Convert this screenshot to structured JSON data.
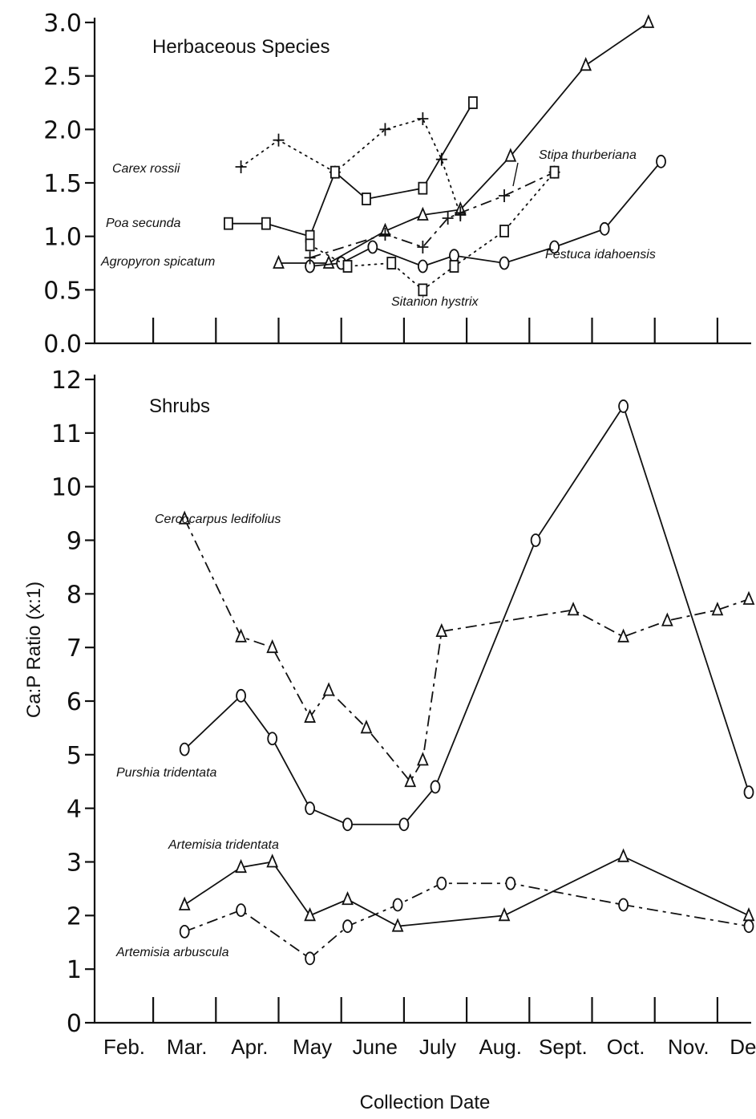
{
  "chart_data": [
    {
      "panel": "herbaceous",
      "type": "line",
      "title": "Herbaceous Species",
      "ylim": [
        0,
        3.0
      ],
      "yticks": [
        "0.0",
        "0.5",
        "1.0",
        "1.5",
        "2.0",
        "2.5",
        "3.0"
      ],
      "series": [
        {
          "name": "Carex rossii",
          "marker": "plus",
          "line": "dotted",
          "x": [
            1.9,
            2.5,
            3.4,
            4.2,
            4.8,
            5.1,
            5.4
          ],
          "y": [
            1.65,
            1.9,
            1.6,
            2.0,
            2.1,
            1.72,
            1.2
          ]
        },
        {
          "name": "Poa secunda",
          "marker": "square",
          "line": "solid",
          "x": [
            1.7,
            2.3,
            3.0,
            3.4,
            3.9,
            4.8,
            5.6
          ],
          "y": [
            1.12,
            1.12,
            1.0,
            1.6,
            1.35,
            1.45,
            2.25
          ]
        },
        {
          "name": "Agropyron spicatum",
          "marker": "triangle",
          "line": "solid",
          "x": [
            2.5,
            3.3,
            4.2,
            4.8,
            5.4,
            6.2,
            7.4,
            8.4
          ],
          "y": [
            0.75,
            0.75,
            1.05,
            1.2,
            1.25,
            1.75,
            2.6,
            3.0
          ]
        },
        {
          "name": "Festuca idahoensis",
          "marker": "circle",
          "line": "solid",
          "x": [
            3.0,
            3.5,
            4.0,
            4.8,
            5.3,
            6.1,
            6.9,
            7.7,
            8.6
          ],
          "y": [
            0.72,
            0.75,
            0.9,
            0.72,
            0.82,
            0.75,
            0.9,
            1.07,
            1.7
          ]
        },
        {
          "name": "Stipa thurberiana",
          "marker": "plus",
          "line": "dashed",
          "x": [
            3.0,
            4.2,
            4.8,
            5.2,
            5.4,
            6.1,
            6.9
          ],
          "y": [
            0.8,
            1.02,
            0.9,
            1.17,
            1.22,
            1.38,
            1.6
          ]
        },
        {
          "name": "Sitanion hystrix",
          "marker": "square",
          "line": "dotted",
          "x": [
            3.0,
            3.6,
            4.3,
            4.8,
            5.3,
            6.1,
            6.9
          ],
          "y": [
            0.92,
            0.72,
            0.75,
            0.5,
            0.72,
            1.05,
            1.6
          ]
        }
      ]
    },
    {
      "panel": "shrubs",
      "type": "line",
      "title": "Shrubs",
      "ylim": [
        0,
        12
      ],
      "yticks": [
        "0",
        "1",
        "2",
        "3",
        "4",
        "5",
        "6",
        "7",
        "8",
        "9",
        "10",
        "11",
        "12"
      ],
      "series": [
        {
          "name": "Cercocarpus ledifolius",
          "marker": "triangle",
          "line": "dashed",
          "x": [
            1.0,
            1.9,
            2.4,
            3.0,
            3.3,
            3.9,
            4.6,
            4.8,
            5.1,
            7.2,
            8.0,
            8.7,
            9.5,
            10.0,
            10.4
          ],
          "y": [
            9.4,
            7.2,
            7.0,
            5.7,
            6.2,
            5.5,
            4.5,
            4.9,
            7.3,
            7.7,
            7.2,
            7.5,
            7.7,
            7.9,
            8.0
          ]
        },
        {
          "name": "Purshia tridentata",
          "marker": "circle",
          "line": "solid",
          "x": [
            1.0,
            1.9,
            2.4,
            3.0,
            3.6,
            4.5,
            5.0,
            6.6,
            8.0,
            10.0
          ],
          "y": [
            5.1,
            6.1,
            5.3,
            4.0,
            3.7,
            3.7,
            4.4,
            9.0,
            11.5,
            4.3
          ]
        },
        {
          "name": "Artemisia tridentata",
          "marker": "triangle",
          "line": "solid",
          "x": [
            1.0,
            1.9,
            2.4,
            3.0,
            3.6,
            4.4,
            6.1,
            8.0,
            10.0
          ],
          "y": [
            2.2,
            2.9,
            3.0,
            2.0,
            2.3,
            1.8,
            2.0,
            3.1,
            2.0
          ]
        },
        {
          "name": "Artemisia arbuscula",
          "marker": "circle",
          "line": "dashed",
          "x": [
            1.0,
            1.9,
            3.0,
            3.6,
            4.4,
            5.1,
            6.2,
            8.0,
            10.0
          ],
          "y": [
            1.7,
            2.1,
            1.2,
            1.8,
            2.2,
            2.6,
            2.6,
            2.2,
            1.8
          ]
        }
      ]
    }
  ],
  "x_axis": {
    "ticks": [
      "Feb.",
      "Mar.",
      "Apr.",
      "May",
      "June",
      "July",
      "Aug.",
      "Sept.",
      "Oct.",
      "Nov.",
      "Dec."
    ],
    "xlabel": "Collection Date"
  },
  "ylabel": "Ca:P Ratio (x:1)"
}
